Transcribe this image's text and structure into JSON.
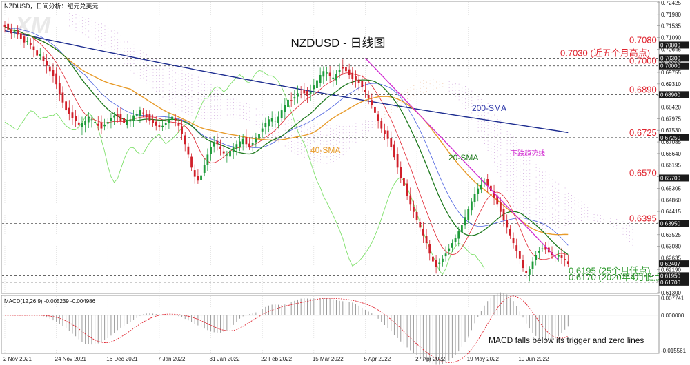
{
  "header": {
    "symbol_text": "NZDUSD，日间分析：纽元兑美元"
  },
  "chart_data": {
    "type": "candlestick",
    "title": "NZDUSD - 日线图",
    "ylim": [
      0.613,
      0.7245
    ],
    "y_ticks": [
      "0.72425",
      "0.71980",
      "0.71535",
      "0.71090",
      "0.70645",
      "0.70200",
      "0.69755",
      "0.69310",
      "0.68865",
      "0.68420",
      "0.67975",
      "0.67530",
      "0.67085",
      "0.66640",
      "0.66195",
      "0.65750",
      "0.65305",
      "0.64860",
      "0.64415",
      "0.63970",
      "0.63525",
      "0.63080",
      "0.62635",
      "0.62190",
      "0.61745",
      "0.61300"
    ],
    "y_tick_values": [
      0.72425,
      0.7198,
      0.71535,
      0.7109,
      0.70645,
      0.702,
      0.69755,
      0.6931,
      0.68865,
      0.6842,
      0.67975,
      0.6753,
      0.67085,
      0.6664,
      0.66195,
      0.6575,
      0.65305,
      0.6486,
      0.64415,
      0.6397,
      0.63525,
      0.6308,
      0.62635,
      0.6219,
      0.61745,
      0.613
    ],
    "x_ticks": [
      "2 Nov 2021",
      "24 Nov 2021",
      "16 Dec 2021",
      "7 Jan 2022",
      "31 Jan 2022",
      "22 Feb 2022",
      "15 Mar 2022",
      "5 Apr 2022",
      "27 Apr 2022",
      "19 May 2022",
      "10 Jun 2022"
    ],
    "x_tick_index": [
      0,
      16,
      32,
      48,
      64,
      80,
      96,
      112,
      128,
      144,
      160
    ],
    "n_bars": 176,
    "levels": [
      {
        "value": 0.708,
        "label": "0.7080",
        "note": "",
        "color": "#e0242f",
        "tag": "0.70800"
      },
      {
        "value": 0.703,
        "label": "0.7030",
        "note": "(近五个月高点)",
        "color": "#e0242f",
        "tag": "0.70300"
      },
      {
        "value": 0.7,
        "label": "0.7000",
        "note": "",
        "color": "#e0242f",
        "tag": "0.70000"
      },
      {
        "value": 0.689,
        "label": "0.6890",
        "note": "",
        "color": "#e0242f",
        "tag": "0.68900"
      },
      {
        "value": 0.6725,
        "label": "0.6725",
        "note": "",
        "color": "#e0242f",
        "tag": "0.67250"
      },
      {
        "value": 0.657,
        "label": "0.6570",
        "note": "",
        "color": "#e0242f",
        "tag": "0.65700"
      },
      {
        "value": 0.6395,
        "label": "0.6395",
        "note": "",
        "color": "#e0242f",
        "tag": "0.63950"
      },
      {
        "value": 0.6195,
        "label": "0.6195",
        "note": "(25个月低点)",
        "color": "#2e9a2e",
        "tag": "0.61950"
      },
      {
        "value": 0.617,
        "label": "0.6170",
        "note": "(2020年4月低点)",
        "color": "#2e9a2e",
        "tag": "0.61700"
      }
    ],
    "last_price": "0.62407",
    "last_price_value": 0.62407,
    "annotations": {
      "sma200": "200-SMA",
      "sma40": "40-SMA",
      "sma20": "20-SMA",
      "trendline": "下跌趋势线",
      "macd_note": "MACD falls below its trigger and zero lines"
    },
    "trendline": {
      "from_index": 112,
      "from_value": 0.703,
      "to_index": 172,
      "to_value": 0.6255
    },
    "closes": [
      0.715,
      0.714,
      0.7125,
      0.7135,
      0.712,
      0.7105,
      0.709,
      0.7095,
      0.708,
      0.706,
      0.704,
      0.7045,
      0.702,
      0.7,
      0.698,
      0.696,
      0.693,
      0.689,
      0.686,
      0.683,
      0.6815,
      0.68,
      0.679,
      0.6775,
      0.678,
      0.679,
      0.6805,
      0.6795,
      0.6785,
      0.677,
      0.676,
      0.6775,
      0.6785,
      0.68,
      0.681,
      0.6805,
      0.679,
      0.678,
      0.679,
      0.6795,
      0.681,
      0.6815,
      0.683,
      0.682,
      0.6805,
      0.679,
      0.678,
      0.677,
      0.6765,
      0.677,
      0.678,
      0.6795,
      0.6805,
      0.679,
      0.677,
      0.674,
      0.67,
      0.666,
      0.661,
      0.6575,
      0.656,
      0.658,
      0.662,
      0.666,
      0.669,
      0.6705,
      0.67,
      0.668,
      0.6665,
      0.666,
      0.6675,
      0.669,
      0.67,
      0.671,
      0.672,
      0.67,
      0.669,
      0.6705,
      0.672,
      0.674,
      0.676,
      0.678,
      0.6795,
      0.68,
      0.679,
      0.6805,
      0.683,
      0.685,
      0.687,
      0.6865,
      0.688,
      0.6895,
      0.69,
      0.6895,
      0.6885,
      0.69,
      0.6925,
      0.6945,
      0.6965,
      0.698,
      0.6975,
      0.696,
      0.6955,
      0.697,
      0.6985,
      0.699,
      0.698,
      0.6965,
      0.695,
      0.6945,
      0.6935,
      0.692,
      0.69,
      0.6875,
      0.685,
      0.682,
      0.679,
      0.676,
      0.674,
      0.672,
      0.669,
      0.665,
      0.661,
      0.657,
      0.654,
      0.65,
      0.647,
      0.644,
      0.641,
      0.638,
      0.635,
      0.632,
      0.628,
      0.625,
      0.623,
      0.6245,
      0.626,
      0.628,
      0.63,
      0.632,
      0.634,
      0.6365,
      0.639,
      0.642,
      0.645,
      0.648,
      0.651,
      0.653,
      0.6545,
      0.6555,
      0.654,
      0.652,
      0.6495,
      0.647,
      0.644,
      0.641,
      0.638,
      0.635,
      0.632,
      0.629,
      0.626,
      0.6225,
      0.6205,
      0.622,
      0.625,
      0.6275,
      0.629,
      0.63,
      0.6295,
      0.6285,
      0.6275,
      0.627,
      0.6275,
      0.6265,
      0.6255,
      0.624
    ],
    "macd": {
      "label": "MACD(12,26,9) -0.005239 -0.004986",
      "ylim": [
        -0.0165,
        0.0085
      ],
      "y_ticks": [
        "0.007741",
        "0.000000",
        "-0.015561"
      ],
      "y_tick_values": [
        0.007741,
        0.0,
        -0.015561
      ]
    }
  }
}
